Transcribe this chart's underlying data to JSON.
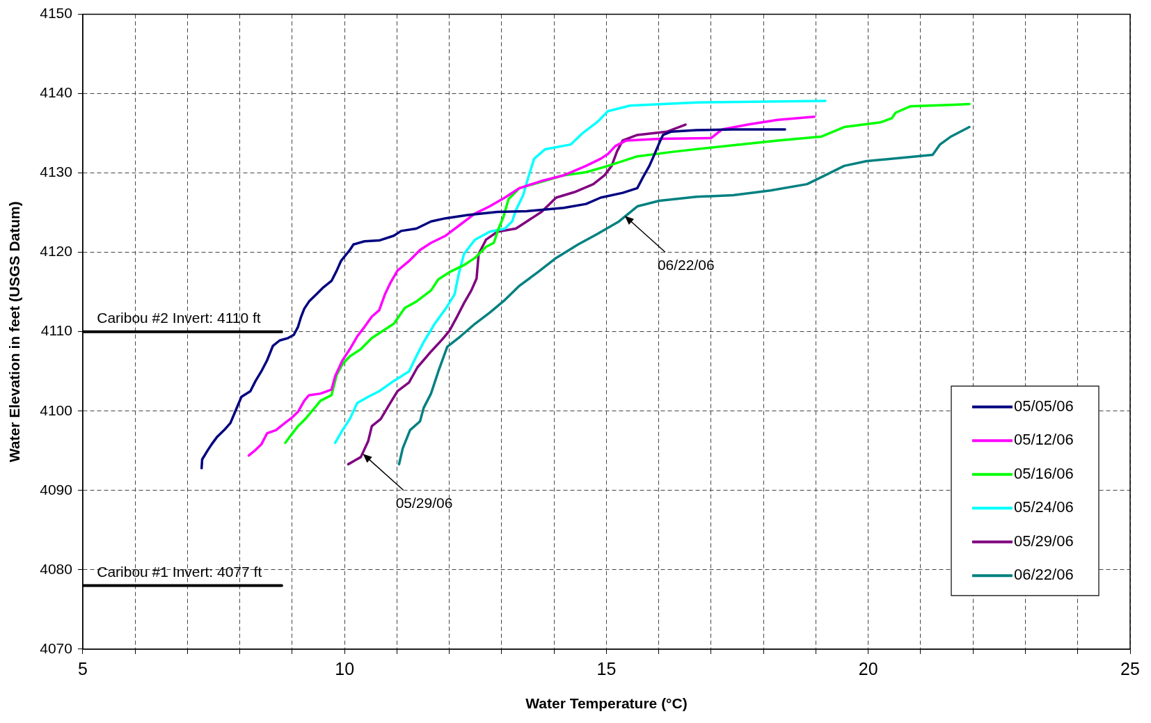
{
  "chart_data": {
    "type": "line",
    "xlabel": "Water Temperature (°C)",
    "ylabel": "Water Elevation in feet (USGS Datum)",
    "xlim": [
      5,
      25
    ],
    "ylim": [
      4070,
      4150
    ],
    "xticks": [
      5,
      {
        "value": 6,
        "label": null
      },
      {
        "value": 7,
        "label": null
      },
      {
        "value": 8,
        "label": null
      },
      {
        "value": 9,
        "label": null
      },
      10,
      {
        "value": 11,
        "label": null
      },
      {
        "value": 12,
        "label": null
      },
      {
        "value": 13,
        "label": null
      },
      {
        "value": 14,
        "label": null
      },
      15,
      {
        "value": 16,
        "label": null
      },
      {
        "value": 17,
        "label": null
      },
      {
        "value": 18,
        "label": null
      },
      {
        "value": 19,
        "label": null
      },
      20,
      {
        "value": 21,
        "label": null
      },
      {
        "value": 22,
        "label": null
      },
      {
        "value": 23,
        "label": null
      },
      {
        "value": 24,
        "label": null
      },
      25
    ],
    "yticks": [
      4070,
      4080,
      4090,
      4100,
      4110,
      4120,
      4130,
      4140,
      4150
    ],
    "grid": true,
    "legend": "bottom right",
    "series": [
      {
        "name": "05/05/06",
        "color": "#000080",
        "x": [
          7.27,
          7.28,
          7.39,
          7.46,
          7.56,
          7.7,
          7.82,
          7.96,
          8.03,
          8.2,
          8.3,
          8.41,
          8.52,
          8.63,
          8.76,
          8.92,
          9.03,
          9.11,
          9.17,
          9.23,
          9.32,
          9.46,
          9.58,
          9.75,
          9.85,
          9.93,
          10.1,
          10.17,
          10.38,
          10.66,
          10.94,
          11.08,
          11.37,
          11.65,
          11.93,
          12.35,
          12.92,
          13.48,
          14.18,
          14.61,
          14.89,
          15.31,
          15.59,
          15.7,
          15.82,
          15.9,
          16.01,
          16.08,
          16.23,
          16.72,
          17.42,
          18.41
        ],
        "values": [
          4092.8,
          4093.9,
          4095.1,
          4095.8,
          4096.7,
          4097.6,
          4098.5,
          4100.7,
          4101.8,
          4102.5,
          4103.8,
          4105,
          4106.4,
          4108.2,
          4108.9,
          4109.2,
          4109.6,
          4110.6,
          4111.9,
          4112.9,
          4113.8,
          4114.7,
          4115.5,
          4116.4,
          4117.7,
          4118.9,
          4120.3,
          4121,
          4121.4,
          4121.5,
          4122.1,
          4122.7,
          4123,
          4123.9,
          4124.3,
          4124.7,
          4125.1,
          4125.2,
          4125.6,
          4126.1,
          4126.9,
          4127.5,
          4128.1,
          4129.5,
          4130.9,
          4132.1,
          4133.8,
          4134.8,
          4135.2,
          4135.4,
          4135.5,
          4135.5
        ]
      },
      {
        "name": "05/12/06",
        "color": "#ff00ff",
        "x": [
          8.17,
          8.3,
          8.41,
          8.52,
          8.69,
          8.86,
          9,
          9.11,
          9.23,
          9.32,
          9.54,
          9.75,
          9.82,
          9.96,
          10.1,
          10.24,
          10.38,
          10.52,
          10.66,
          10.77,
          10.87,
          11.01,
          11.23,
          11.44,
          11.65,
          11.93,
          12.21,
          12.49,
          12.77,
          13.06,
          13.34,
          13.76,
          14.18,
          14.61,
          14.89,
          15.03,
          15.17,
          15.38,
          16.01,
          17,
          17.21,
          17.7,
          18.27,
          18.97
        ],
        "values": [
          4094.4,
          4095.1,
          4095.8,
          4097.2,
          4097.6,
          4098.5,
          4099.2,
          4099.9,
          4101.3,
          4102,
          4102.2,
          4102.7,
          4104.4,
          4106.4,
          4107.8,
          4109.4,
          4110.6,
          4111.9,
          4112.7,
          4114.7,
          4116.1,
          4117.7,
          4118.9,
          4120.3,
          4121.2,
          4122.1,
          4123.5,
          4124.9,
          4125.8,
          4126.9,
          4128.1,
          4129,
          4129.7,
          4130.9,
          4131.8,
          4132.4,
          4133.4,
          4134.1,
          4134.3,
          4134.4,
          4135.5,
          4136.1,
          4136.7,
          4137.1
        ]
      },
      {
        "name": "05/16/06",
        "color": "#00ff00",
        "x": [
          8.87,
          8.97,
          9.11,
          9.25,
          9.39,
          9.54,
          9.75,
          9.85,
          9.96,
          10.1,
          10.31,
          10.52,
          10.73,
          10.94,
          11.15,
          11.37,
          11.65,
          11.79,
          12,
          12.28,
          12.49,
          12.7,
          12.85,
          12.94,
          13.03,
          13.13,
          13.34,
          14.18,
          14.61,
          15.03,
          15.59,
          16.3,
          17.42,
          18.27,
          19.11,
          19.54,
          20.24,
          20.45,
          20.52,
          20.8,
          21.65,
          21.93
        ],
        "values": [
          4096,
          4096.9,
          4098.1,
          4099,
          4100.1,
          4101.3,
          4102,
          4104.6,
          4105.9,
          4106.9,
          4107.8,
          4109.2,
          4110.1,
          4111,
          4113,
          4113.8,
          4115.2,
          4116.6,
          4117.5,
          4118.4,
          4119.3,
          4120.7,
          4121.2,
          4123,
          4124.4,
          4126.7,
          4128.1,
          4129.7,
          4130.1,
          4130.9,
          4132.1,
          4132.7,
          4133.5,
          4134.1,
          4134.6,
          4135.8,
          4136.4,
          4136.9,
          4137.6,
          4138.4,
          4138.6,
          4138.7
        ]
      },
      {
        "name": "05/24/06",
        "color": "#00ffff",
        "x": [
          9.82,
          9.96,
          10.1,
          10.24,
          10.45,
          10.66,
          10.94,
          11.23,
          11.37,
          11.51,
          11.72,
          11.93,
          12.1,
          12.18,
          12.28,
          12.49,
          12.77,
          13.06,
          13.2,
          13.27,
          13.41,
          13.51,
          13.62,
          13.83,
          14.32,
          14.54,
          14.82,
          15.03,
          15.45,
          16.72,
          19.18
        ],
        "values": [
          4096,
          4097.6,
          4099,
          4101,
          4101.8,
          4102.5,
          4103.8,
          4105,
          4106.9,
          4108.7,
          4111,
          4112.9,
          4114.7,
          4117.3,
          4119.8,
          4121.6,
          4122.6,
          4123,
          4123.9,
          4125.3,
          4127.2,
          4129.5,
          4131.8,
          4133,
          4133.6,
          4135,
          4136.4,
          4137.8,
          4138.5,
          4138.9,
          4139.1
        ]
      },
      {
        "name": "05/29/06",
        "color": "#800080",
        "x": [
          10.07,
          10.31,
          10.45,
          10.52,
          10.69,
          10.87,
          11.01,
          11.23,
          11.39,
          11.65,
          11.86,
          12,
          12.14,
          12.28,
          12.42,
          12.52,
          12.56,
          12.7,
          12.92,
          13.27,
          13.48,
          13.76,
          14.04,
          14.39,
          14.75,
          14.96,
          15.1,
          15.2,
          15.31,
          15.59,
          16.15,
          16.51
        ],
        "values": [
          4093.3,
          4094.2,
          4096.2,
          4098.1,
          4099,
          4101,
          4102.5,
          4103.6,
          4105.5,
          4107.5,
          4109,
          4110.1,
          4111.8,
          4113.6,
          4115.2,
          4116.7,
          4119.8,
          4121.6,
          4122.6,
          4123,
          4123.9,
          4125.1,
          4126.9,
          4127.6,
          4128.6,
          4129.7,
          4130.9,
          4132.7,
          4134.1,
          4134.8,
          4135.2,
          4136.1
        ]
      },
      {
        "name": "06/22/06",
        "color": "#008080",
        "x": [
          11.04,
          11.11,
          11.25,
          11.44,
          11.51,
          11.65,
          11.79,
          11.96,
          12.21,
          12.49,
          12.77,
          13.06,
          13.34,
          13.69,
          14.04,
          14.46,
          14.82,
          15.24,
          15.59,
          16.01,
          16.72,
          17.42,
          18.13,
          18.83,
          19.11,
          19.54,
          19.97,
          21.23,
          21.37,
          21.58,
          21.93
        ],
        "values": [
          4093.3,
          4095.3,
          4097.6,
          4098.7,
          4100.4,
          4102.2,
          4105,
          4108.1,
          4109.4,
          4111,
          4112.4,
          4114,
          4115.8,
          4117.5,
          4119.3,
          4121,
          4122.3,
          4123.9,
          4125.8,
          4126.5,
          4127,
          4127.2,
          4127.8,
          4128.6,
          4129.5,
          4130.9,
          4131.5,
          4132.3,
          4133.6,
          4134.6,
          4135.8
        ]
      },
      {
        "color": "#000000",
        "x": [
          5,
          8.8
        ],
        "values": [
          4110,
          4110
        ]
      },
      {
        "color": "#000000",
        "x": [
          5,
          8.8
        ],
        "values": [
          4078,
          4078
        ]
      }
    ],
    "annotations": [
      {
        "text": "Caribou #2 Invert: 4110 ft",
        "x": 5.27,
        "y": 4110
      },
      {
        "text": "Caribou #1 Invert: 4077 ft",
        "x": 5.27,
        "y": 4078
      },
      {
        "text": "05/29/06",
        "x": 10.35,
        "y": 4094.6
      },
      {
        "text": "06/22/06",
        "x": 15.35,
        "y": 4124.6
      }
    ]
  }
}
